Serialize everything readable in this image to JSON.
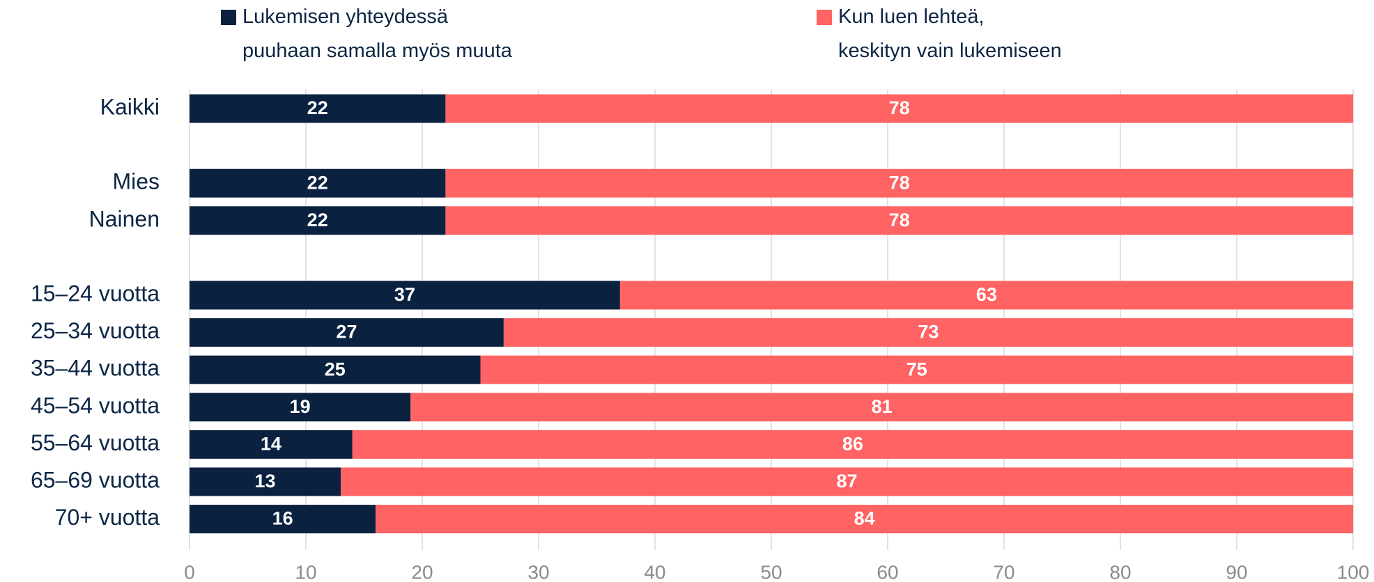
{
  "chart_data": {
    "type": "stacked_barh",
    "categories": [
      "Kaikki",
      null,
      "Mies",
      "Nainen",
      null,
      "15–24 vuotta",
      "25–34 vuotta",
      "35–44 vuotta",
      "45–54 vuotta",
      "55–64 vuotta",
      "65–69 vuotta",
      "70+ vuotta"
    ],
    "series": [
      {
        "name": "Lukemisen yhteydessä\npuuhaan samalla myös muuta",
        "color": "#0a2240",
        "values": [
          22,
          null,
          22,
          22,
          null,
          37,
          27,
          25,
          19,
          14,
          13,
          16
        ]
      },
      {
        "name": "Kun luen lehteä,\nkeskityn vain lukemiseen",
        "color": "#ff6363",
        "values": [
          78,
          null,
          78,
          78,
          null,
          63,
          73,
          75,
          81,
          86,
          87,
          84
        ]
      }
    ],
    "xlim": [
      0,
      100
    ],
    "xticks": [
      0,
      10,
      20,
      30,
      40,
      50,
      60,
      70,
      80,
      90,
      100
    ],
    "grid": true
  }
}
